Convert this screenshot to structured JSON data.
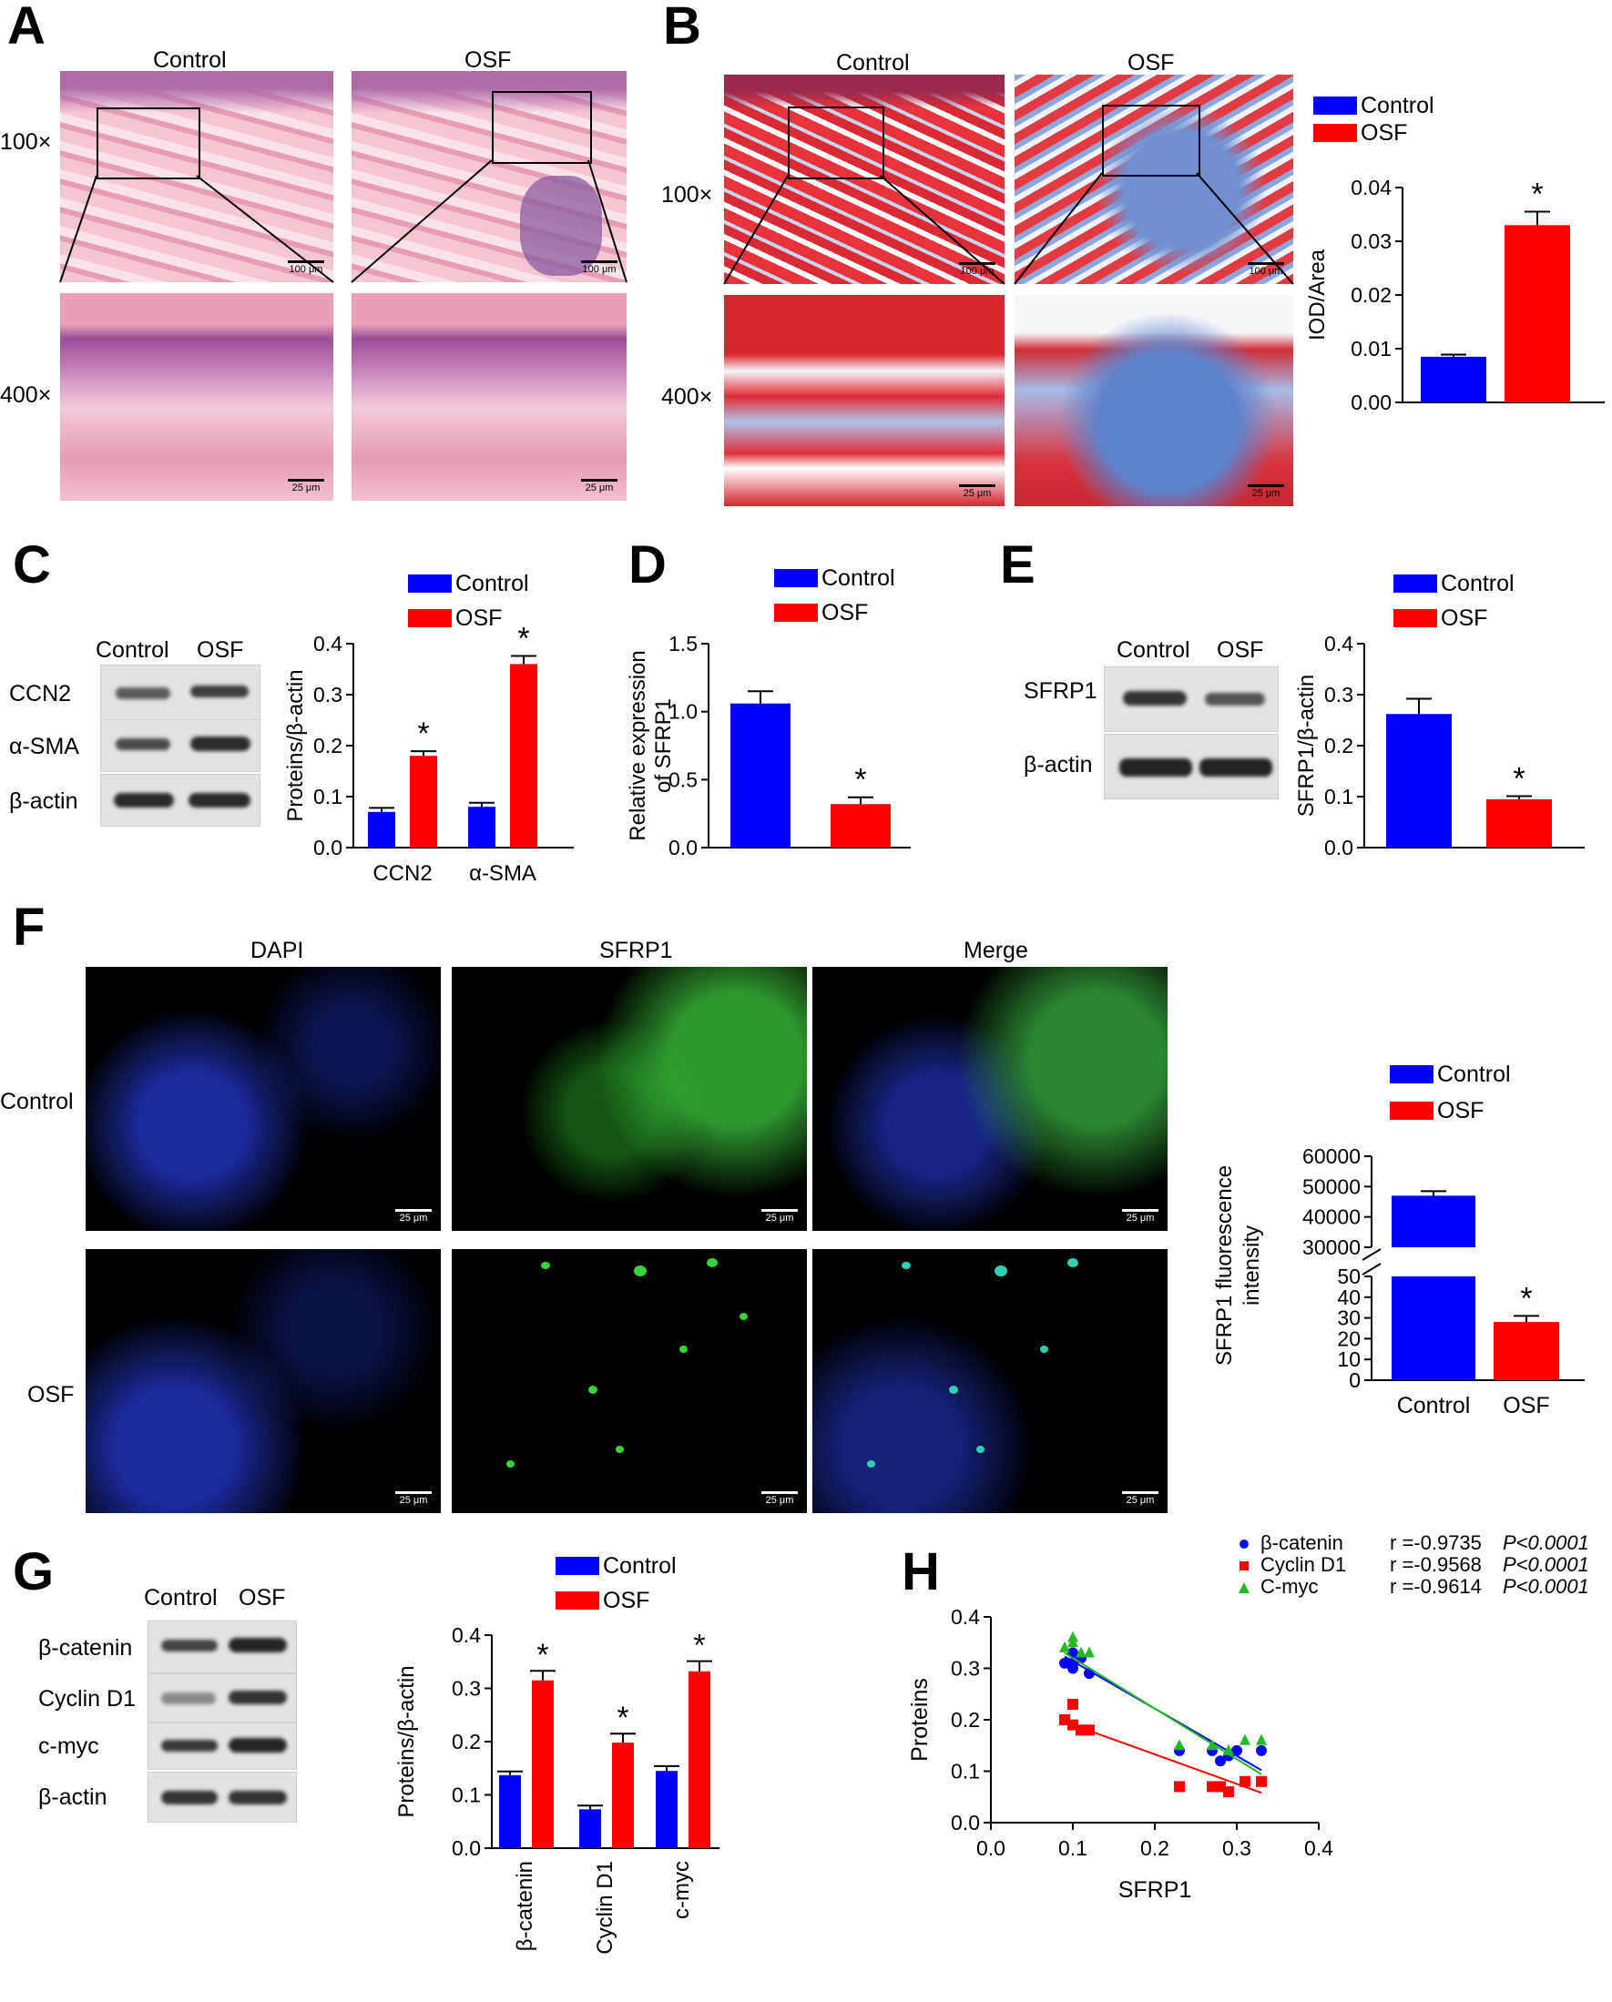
{
  "panels": [
    "A",
    "B",
    "C",
    "D",
    "E",
    "F",
    "G",
    "H"
  ],
  "panel_a": {
    "col_labels": [
      "Control",
      "OSF"
    ],
    "row_labels": [
      "100×",
      "400×"
    ],
    "scale_100": "100 μm",
    "scale_400": "25 μm"
  },
  "panel_b": {
    "col_labels": [
      "Control",
      "OSF"
    ],
    "row_labels": [
      "100×",
      "400×"
    ],
    "scale_100": "100 μm",
    "scale_400": "25 μm"
  },
  "panel_c_blot": {
    "lanes": [
      "Control",
      "OSF"
    ],
    "rows": [
      "CCN2",
      "α-SMA",
      "β-actin"
    ]
  },
  "panel_e_blot": {
    "lanes": [
      "Control",
      "OSF"
    ],
    "rows": [
      "SFRP1",
      "β-actin"
    ]
  },
  "panel_f": {
    "col_labels": [
      "DAPI",
      "SFRP1",
      "Merge"
    ],
    "row_labels": [
      "Control",
      "OSF"
    ],
    "scale": "25 μm"
  },
  "panel_g_blot": {
    "lanes": [
      "Control",
      "OSF"
    ],
    "rows": [
      "β-catenin",
      "Cyclin D1",
      "c-myc",
      "β-actin"
    ]
  },
  "colors": {
    "control": "#0000ff",
    "osf": "#ff0000",
    "cmyc": "#22bb22"
  },
  "chart_data": [
    {
      "id": "B",
      "type": "bar",
      "categories": [
        "Control",
        "OSF"
      ],
      "values": [
        0.0085,
        0.033
      ],
      "errors": [
        0.0004,
        0.0025
      ],
      "ylabel": "IOD/Area",
      "ylim": [
        0,
        0.04
      ],
      "yticks": [
        "0.00",
        "0.01",
        "0.02",
        "0.03",
        "0.04"
      ],
      "legend": [
        "Control",
        "OSF"
      ],
      "significance": [
        "",
        "*"
      ]
    },
    {
      "id": "C",
      "type": "bar",
      "categories": [
        "CCN2",
        "α-SMA"
      ],
      "series": [
        {
          "name": "Control",
          "values": [
            0.07,
            0.08
          ],
          "errors": [
            0.008,
            0.008
          ]
        },
        {
          "name": "OSF",
          "values": [
            0.18,
            0.36
          ],
          "errors": [
            0.009,
            0.016
          ]
        }
      ],
      "ylabel": "Proteins/β-actin",
      "ylim": [
        0,
        0.4
      ],
      "yticks": [
        "0.0",
        "0.1",
        "0.2",
        "0.3",
        "0.4"
      ],
      "significance": [
        "*",
        "*"
      ]
    },
    {
      "id": "D",
      "type": "bar",
      "categories": [
        "Control",
        "OSF"
      ],
      "values": [
        1.06,
        0.32
      ],
      "errors": [
        0.09,
        0.05
      ],
      "ylabel_lines": [
        "Relative expression",
        "of SFRP1"
      ],
      "ylim": [
        0,
        1.5
      ],
      "yticks": [
        "0.0",
        "0.5",
        "1.0",
        "1.5"
      ],
      "legend": [
        "Control",
        "OSF"
      ],
      "significance": [
        "",
        "*"
      ]
    },
    {
      "id": "E",
      "type": "bar",
      "categories": [
        "Control",
        "OSF"
      ],
      "values": [
        0.262,
        0.095
      ],
      "errors": [
        0.03,
        0.006
      ],
      "ylabel": "SFRP1/β-actin",
      "ylim": [
        0,
        0.4
      ],
      "yticks": [
        "0.0",
        "0.1",
        "0.2",
        "0.3",
        "0.4"
      ],
      "legend": [
        "Control",
        "OSF"
      ],
      "significance": [
        "",
        "*"
      ]
    },
    {
      "id": "F",
      "type": "bar",
      "categories": [
        "Control",
        "OSF"
      ],
      "values": [
        47000,
        28
      ],
      "errors": [
        1500,
        3
      ],
      "ylabel_lines": [
        "SFRP1 fluorescence",
        "intensity"
      ],
      "axis_break": {
        "lower": [
          0,
          50
        ],
        "upper": [
          30000,
          60000
        ]
      },
      "yticks_lower": [
        "0",
        "10",
        "20",
        "30",
        "40",
        "50"
      ],
      "yticks_upper": [
        "30000",
        "40000",
        "50000",
        "60000"
      ],
      "legend": [
        "Control",
        "OSF"
      ],
      "significance": [
        "",
        "*"
      ]
    },
    {
      "id": "G",
      "type": "bar",
      "categories": [
        "β-catenin",
        "Cyclin D1",
        "c-myc"
      ],
      "series": [
        {
          "name": "Control",
          "values": [
            0.137,
            0.073,
            0.145
          ],
          "errors": [
            0.007,
            0.007,
            0.009
          ]
        },
        {
          "name": "OSF",
          "values": [
            0.315,
            0.198,
            0.332
          ],
          "errors": [
            0.018,
            0.017,
            0.019
          ]
        }
      ],
      "ylabel": "Proteins/β-actin",
      "ylim": [
        0,
        0.4
      ],
      "yticks": [
        "0.0",
        "0.1",
        "0.2",
        "0.3",
        "0.4"
      ],
      "significance": [
        "*",
        "*",
        "*"
      ]
    },
    {
      "id": "H",
      "type": "scatter",
      "xlabel": "SFRP1",
      "ylabel": "Proteins",
      "xlim": [
        0,
        0.4
      ],
      "ylim": [
        0,
        0.4
      ],
      "xticks": [
        "0.0",
        "0.1",
        "0.2",
        "0.3",
        "0.4"
      ],
      "yticks": [
        "0.0",
        "0.1",
        "0.2",
        "0.3",
        "0.4"
      ],
      "series": [
        {
          "name": "β-catenin",
          "r": "r =-0.9735",
          "p": "P<0.0001",
          "marker": "circle",
          "points": [
            [
              0.09,
              0.31
            ],
            [
              0.1,
              0.33
            ],
            [
              0.1,
              0.31
            ],
            [
              0.11,
              0.32
            ],
            [
              0.1,
              0.3
            ],
            [
              0.12,
              0.29
            ],
            [
              0.23,
              0.14
            ],
            [
              0.27,
              0.14
            ],
            [
              0.28,
              0.12
            ],
            [
              0.29,
              0.13
            ],
            [
              0.3,
              0.14
            ],
            [
              0.33,
              0.14
            ]
          ],
          "fit": [
            [
              0.09,
              0.323
            ],
            [
              0.33,
              0.102
            ]
          ]
        },
        {
          "name": "Cyclin D1",
          "r": "r =-0.9568",
          "p": "P<0.0001",
          "marker": "square",
          "points": [
            [
              0.09,
              0.2
            ],
            [
              0.1,
              0.23
            ],
            [
              0.1,
              0.19
            ],
            [
              0.11,
              0.18
            ],
            [
              0.12,
              0.18
            ],
            [
              0.23,
              0.07
            ],
            [
              0.27,
              0.07
            ],
            [
              0.28,
              0.07
            ],
            [
              0.29,
              0.06
            ],
            [
              0.31,
              0.08
            ],
            [
              0.33,
              0.08
            ]
          ],
          "fit": [
            [
              0.09,
              0.196
            ],
            [
              0.33,
              0.058
            ]
          ]
        },
        {
          "name": "C-myc",
          "r": "r =-0.9614",
          "p": "P<0.0001",
          "marker": "triangle",
          "points": [
            [
              0.1,
              0.36
            ],
            [
              0.1,
              0.35
            ],
            [
              0.09,
              0.34
            ],
            [
              0.11,
              0.33
            ],
            [
              0.12,
              0.33
            ],
            [
              0.23,
              0.15
            ],
            [
              0.27,
              0.15
            ],
            [
              0.29,
              0.14
            ],
            [
              0.31,
              0.16
            ],
            [
              0.33,
              0.16
            ]
          ],
          "fit": [
            [
              0.09,
              0.33
            ],
            [
              0.33,
              0.094
            ]
          ]
        }
      ]
    }
  ]
}
